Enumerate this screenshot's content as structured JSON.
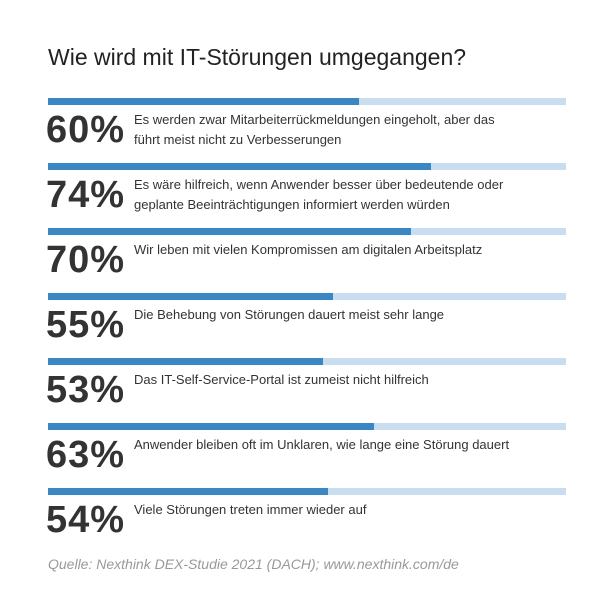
{
  "chart_data": {
    "type": "bar",
    "title": "Wie wird mit IT-Störungen umgegangen?",
    "categories": [
      "Es werden zwar Mitarbeiterrückmeldungen eingeholt, aber das führt meist nicht zu Verbesserungen",
      "Es wäre hilfreich, wenn Anwender besser über bedeutende oder geplante Beeinträchtigungen informiert werden würden",
      "Wir leben mit vielen Kompromissen am digitalen Arbeitsplatz",
      "Die Behebung von Störungen dauert meist sehr lange",
      "Das IT-Self-Service-Portal ist zumeist nicht hilfreich",
      "Anwender bleiben oft im Unklaren, wie lange eine Störung dauert",
      "Viele Störungen treten immer wieder auf"
    ],
    "values": [
      60,
      74,
      70,
      55,
      53,
      63,
      54
    ],
    "value_labels": [
      "60%",
      "74%",
      "70%",
      "55%",
      "53%",
      "63%",
      "54%"
    ],
    "xlim": [
      0,
      100
    ],
    "color": "#3a87c4",
    "track_color": "#c8def0",
    "source": "Quelle: Nexthink DEX-Studie 2021 (DACH); www.nexthink.com/de"
  }
}
